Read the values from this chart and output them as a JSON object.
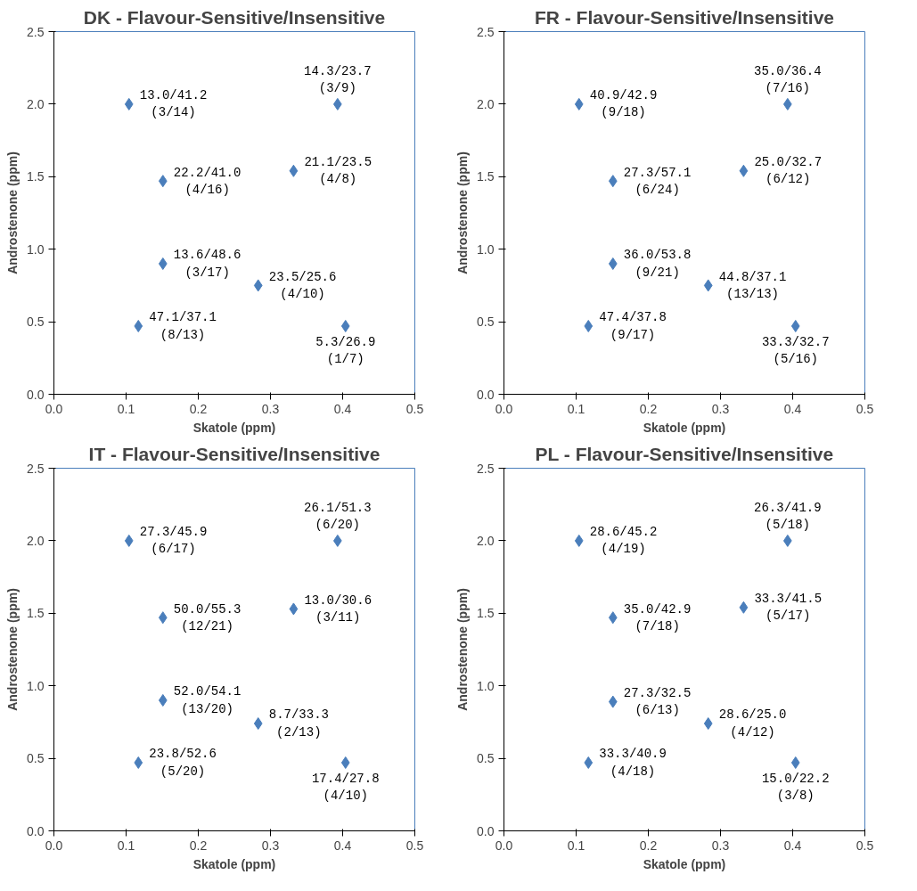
{
  "chart_data": [
    {
      "type": "scatter",
      "title": "DK - Flavour-Sensitive/Insensitive",
      "xlabel": "Skatole (ppm)",
      "ylabel": "Androstenone (ppm)",
      "marker": "diamond",
      "grid": false,
      "xlim": [
        0,
        0.5
      ],
      "ylim": [
        0,
        2.5
      ],
      "xticks": [
        {
          "value": 0,
          "label": "0.0"
        },
        {
          "value": 0.1,
          "label": "0.1"
        },
        {
          "value": 0.2,
          "label": "0.2"
        },
        {
          "value": 0.3,
          "label": "0.3"
        },
        {
          "value": 0.4,
          "label": "0.4"
        },
        {
          "value": 0.5,
          "label": "0.5"
        }
      ],
      "yticks": [
        {
          "value": 0,
          "label": "0.0"
        },
        {
          "value": 0.5,
          "label": "0.5"
        },
        {
          "value": 1,
          "label": "1.0"
        },
        {
          "value": 1.5,
          "label": "1.5"
        },
        {
          "value": 2,
          "label": "2.0"
        },
        {
          "value": 2.5,
          "label": "2.5"
        }
      ],
      "series": [
        {
          "color": "#4a7ebb",
          "x": [
            0.104,
            0.393,
            0.151,
            0.332,
            0.151,
            0.283,
            0.117,
            0.404
          ],
          "values": [
            2.0,
            2.0,
            1.47,
            1.54,
            0.9,
            0.75,
            0.47,
            0.47
          ]
        }
      ],
      "annotations": [
        {
          "text": "13.0/41.2\n(3/14)",
          "x": 0.104,
          "y": 2.0
        },
        {
          "text": "14.3/23.7\n(3/9)",
          "x": 0.393,
          "y": 2.0
        },
        {
          "text": "22.2/41.0\n(4/16)",
          "x": 0.151,
          "y": 1.47
        },
        {
          "text": "21.1/23.5\n(4/8)",
          "x": 0.332,
          "y": 1.54
        },
        {
          "text": "13.6/48.6\n(3/17)",
          "x": 0.151,
          "y": 0.9
        },
        {
          "text": "23.5/25.6\n(4/10)",
          "x": 0.283,
          "y": 0.75
        },
        {
          "text": "47.1/37.1\n(8/13)",
          "x": 0.117,
          "y": 0.47
        },
        {
          "text": "5.3/26.9\n(1/7)",
          "x": 0.404,
          "y": 0.47
        }
      ]
    },
    {
      "type": "scatter",
      "title": "FR - Flavour-Sensitive/Insensitive",
      "xlabel": "Skatole (ppm)",
      "ylabel": "Androstenone (ppm)",
      "marker": "diamond",
      "grid": false,
      "xlim": [
        0,
        0.5
      ],
      "ylim": [
        0,
        2.5
      ],
      "xticks": [
        {
          "value": 0,
          "label": "0.0"
        },
        {
          "value": 0.1,
          "label": "0.1"
        },
        {
          "value": 0.2,
          "label": "0.2"
        },
        {
          "value": 0.3,
          "label": "0.3"
        },
        {
          "value": 0.4,
          "label": "0.4"
        },
        {
          "value": 0.5,
          "label": "0.5"
        }
      ],
      "yticks": [
        {
          "value": 0,
          "label": "0.0"
        },
        {
          "value": 0.5,
          "label": "0.5"
        },
        {
          "value": 1,
          "label": "1.0"
        },
        {
          "value": 1.5,
          "label": "1.5"
        },
        {
          "value": 2,
          "label": "2.0"
        },
        {
          "value": 2.5,
          "label": "2.5"
        }
      ],
      "series": [
        {
          "color": "#4a7ebb",
          "x": [
            0.104,
            0.393,
            0.151,
            0.332,
            0.151,
            0.283,
            0.117,
            0.404
          ],
          "values": [
            2.0,
            2.0,
            1.47,
            1.54,
            0.9,
            0.75,
            0.47,
            0.47
          ]
        }
      ],
      "annotations": [
        {
          "text": "40.9/42.9\n(9/18)",
          "x": 0.104,
          "y": 2.0
        },
        {
          "text": "35.0/36.4\n(7/16)",
          "x": 0.393,
          "y": 2.0
        },
        {
          "text": "27.3/57.1\n(6/24)",
          "x": 0.151,
          "y": 1.47
        },
        {
          "text": "25.0/32.7\n(6/12)",
          "x": 0.332,
          "y": 1.54
        },
        {
          "text": "36.0/53.8\n(9/21)",
          "x": 0.151,
          "y": 0.9
        },
        {
          "text": "44.8/37.1\n(13/13)",
          "x": 0.283,
          "y": 0.75
        },
        {
          "text": "47.4/37.8\n(9/17)",
          "x": 0.117,
          "y": 0.47
        },
        {
          "text": "33.3/32.7\n(5/16)",
          "x": 0.404,
          "y": 0.47
        }
      ]
    },
    {
      "type": "scatter",
      "title": "IT - Flavour-Sensitive/Insensitive",
      "xlabel": "Skatole (ppm)",
      "ylabel": "Androstenone (ppm)",
      "marker": "diamond",
      "grid": false,
      "xlim": [
        0,
        0.5
      ],
      "ylim": [
        0,
        2.5
      ],
      "xticks": [
        {
          "value": 0,
          "label": "0.0"
        },
        {
          "value": 0.1,
          "label": "0.1"
        },
        {
          "value": 0.2,
          "label": "0.2"
        },
        {
          "value": 0.3,
          "label": "0.3"
        },
        {
          "value": 0.4,
          "label": "0.4"
        },
        {
          "value": 0.5,
          "label": "0.5"
        }
      ],
      "yticks": [
        {
          "value": 0,
          "label": "0.0"
        },
        {
          "value": 0.5,
          "label": "0.5"
        },
        {
          "value": 1,
          "label": "1.0"
        },
        {
          "value": 1.5,
          "label": "1.5"
        },
        {
          "value": 2,
          "label": "2.0"
        },
        {
          "value": 2.5,
          "label": "2.5"
        }
      ],
      "series": [
        {
          "color": "#4a7ebb",
          "x": [
            0.104,
            0.393,
            0.151,
            0.332,
            0.151,
            0.283,
            0.117,
            0.404
          ],
          "values": [
            2.0,
            2.0,
            1.47,
            1.53,
            0.9,
            0.74,
            0.47,
            0.47
          ]
        }
      ],
      "annotations": [
        {
          "text": "27.3/45.9\n(6/17)",
          "x": 0.104,
          "y": 2.0
        },
        {
          "text": "26.1/51.3\n(6/20)",
          "x": 0.393,
          "y": 2.0
        },
        {
          "text": "50.0/55.3\n(12/21)",
          "x": 0.151,
          "y": 1.47
        },
        {
          "text": "13.0/30.6\n(3/11)",
          "x": 0.332,
          "y": 1.53
        },
        {
          "text": "52.0/54.1\n(13/20)",
          "x": 0.151,
          "y": 0.9
        },
        {
          "text": "8.7/33.3\n(2/13)",
          "x": 0.283,
          "y": 0.74
        },
        {
          "text": "23.8/52.6\n(5/20)",
          "x": 0.117,
          "y": 0.47
        },
        {
          "text": "17.4/27.8\n(4/10)",
          "x": 0.404,
          "y": 0.47
        }
      ]
    },
    {
      "type": "scatter",
      "title": "PL - Flavour-Sensitive/Insensitive",
      "xlabel": "Skatole (ppm)",
      "ylabel": "Androstenone (ppm)",
      "marker": "diamond",
      "grid": false,
      "xlim": [
        0,
        0.5
      ],
      "ylim": [
        0,
        2.5
      ],
      "xticks": [
        {
          "value": 0,
          "label": "0.0"
        },
        {
          "value": 0.1,
          "label": "0.1"
        },
        {
          "value": 0.2,
          "label": "0.2"
        },
        {
          "value": 0.3,
          "label": "0.3"
        },
        {
          "value": 0.4,
          "label": "0.4"
        },
        {
          "value": 0.5,
          "label": "0.5"
        }
      ],
      "yticks": [
        {
          "value": 0,
          "label": "0.0"
        },
        {
          "value": 0.5,
          "label": "0.5"
        },
        {
          "value": 1,
          "label": "1.0"
        },
        {
          "value": 1.5,
          "label": "1.5"
        },
        {
          "value": 2,
          "label": "2.0"
        },
        {
          "value": 2.5,
          "label": "2.5"
        }
      ],
      "series": [
        {
          "color": "#4a7ebb",
          "x": [
            0.104,
            0.393,
            0.151,
            0.332,
            0.151,
            0.283,
            0.117,
            0.404
          ],
          "values": [
            2.0,
            2.0,
            1.47,
            1.54,
            0.89,
            0.74,
            0.47,
            0.47
          ]
        }
      ],
      "annotations": [
        {
          "text": "28.6/45.2\n(4/19)",
          "x": 0.104,
          "y": 2.0
        },
        {
          "text": "26.3/41.9\n(5/18)",
          "x": 0.393,
          "y": 2.0
        },
        {
          "text": "35.0/42.9\n(7/18)",
          "x": 0.151,
          "y": 1.47
        },
        {
          "text": "33.3/41.5\n(5/17)",
          "x": 0.332,
          "y": 1.54
        },
        {
          "text": "27.3/32.5\n(6/13)",
          "x": 0.151,
          "y": 0.89
        },
        {
          "text": "28.6/25.0\n(4/12)",
          "x": 0.283,
          "y": 0.74
        },
        {
          "text": "33.3/40.9\n(4/18)",
          "x": 0.117,
          "y": 0.47
        },
        {
          "text": "15.0/22.2\n(3/8)",
          "x": 0.404,
          "y": 0.47
        }
      ]
    }
  ]
}
